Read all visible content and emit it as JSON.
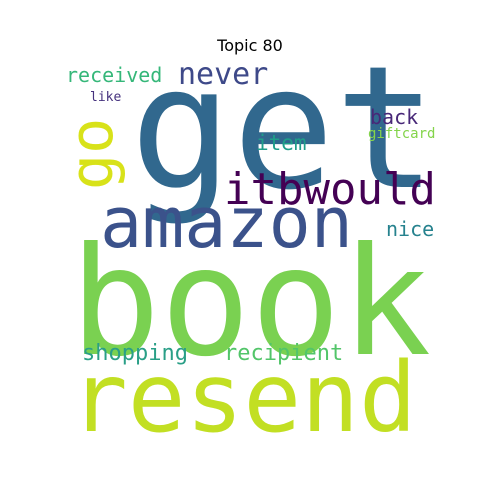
{
  "title": "Topic 80",
  "words": {
    "book": {
      "text": "book",
      "color": "#7ad151"
    },
    "get": {
      "text": "get",
      "color": "#31688e"
    },
    "resend": {
      "text": "resend",
      "color": "#c2df23"
    },
    "amazon": {
      "text": "amazon",
      "color": "#3b528b"
    },
    "itbwould": {
      "text": "itbwould",
      "color": "#440154"
    },
    "go": {
      "text": "go",
      "color": "#d8e219"
    },
    "never": {
      "text": "never",
      "color": "#3e4989"
    },
    "received": {
      "text": "received",
      "color": "#35b779"
    },
    "shopping": {
      "text": "shopping",
      "color": "#2a9f87"
    },
    "recipient": {
      "text": "recipient",
      "color": "#52c569"
    },
    "item": {
      "text": "item",
      "color": "#1f9e89"
    },
    "back": {
      "text": "back",
      "color": "#482878"
    },
    "giftcard": {
      "text": "giftcard",
      "color": "#84d44b"
    },
    "nice": {
      "text": "nice",
      "color": "#26828e"
    },
    "like": {
      "text": "like",
      "color": "#46327e"
    }
  }
}
